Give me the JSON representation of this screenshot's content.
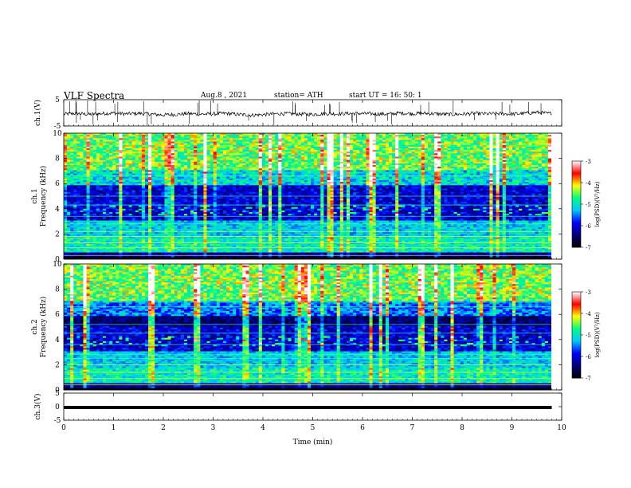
{
  "header": {
    "title": "VLF  Spectra",
    "date": "Aug.8  , 2021",
    "station": "station= ATH",
    "start": "start  UT  =    16: 50: 1"
  },
  "chart_data": [
    {
      "type": "line",
      "panel": "ch1-waveform",
      "ylabel": "ch.1(V)",
      "xlim": [
        0,
        10
      ],
      "ylim": [
        -5,
        5
      ],
      "yticks": [
        "5",
        "-5"
      ],
      "x": [
        0,
        0.25,
        0.5,
        0.75,
        1,
        1.25,
        1.5,
        1.75,
        2,
        2.25,
        2.5,
        2.75,
        3,
        3.25,
        3.5,
        3.75,
        4,
        4.25,
        4.5,
        4.75,
        5,
        5.25,
        5.5,
        5.75,
        6,
        6.25,
        6.5,
        6.75,
        7,
        7.25,
        7.5,
        7.75,
        8,
        8.25,
        8.5,
        8.75,
        9,
        9.25,
        9.5,
        9.75,
        9.8
      ],
      "y": [
        -0.5,
        -0.2,
        -0.6,
        -0.3,
        -0.1,
        -0.4,
        -0.2,
        -0.5,
        -0.8,
        -0.6,
        -0.3,
        -0.5,
        -0.4,
        -0.2,
        -0.6,
        -0.9,
        -0.7,
        -0.4,
        -0.3,
        -0.5,
        -0.6,
        -0.3,
        -0.4,
        -0.2,
        -0.3,
        -0.4,
        -0.5,
        -0.1,
        -0.3,
        -0.2,
        -0.4,
        -0.6,
        -0.5,
        -0.2,
        -0.4,
        -0.3,
        -0.5,
        -0.2,
        0.2,
        -0.3,
        0.0
      ]
    },
    {
      "type": "heatmap",
      "panel": "ch1-spectrogram",
      "ylabel": "ch.1\nFrequency (kHz)",
      "xlim": [
        0,
        9.8
      ],
      "ylim": [
        0,
        10
      ],
      "yticks": [
        "0",
        "2",
        "4",
        "6",
        "8",
        "10"
      ],
      "colorbar": {
        "label": "log(PSD)(V²/Hz)",
        "range": [
          -7,
          -3
        ],
        "ticks": [
          "-3",
          "-4",
          "-5",
          "-6",
          "-7"
        ]
      }
    },
    {
      "type": "heatmap",
      "panel": "ch2-spectrogram",
      "ylabel": "ch.2\nFrequency (kHz)",
      "xlim": [
        0,
        9.8
      ],
      "ylim": [
        0,
        10
      ],
      "yticks": [
        "0",
        "2",
        "4",
        "6",
        "8",
        "10"
      ],
      "colorbar": {
        "label": "log(PSD)(V²/Hz)",
        "range": [
          -7,
          -3
        ],
        "ticks": [
          "-3",
          "-4",
          "-5",
          "-6",
          "-7"
        ]
      }
    },
    {
      "type": "line",
      "panel": "ch3-waveform",
      "ylabel": "ch.3(V)",
      "xlim": [
        0,
        10
      ],
      "ylim": [
        -5,
        5
      ],
      "yticks": [
        "5",
        "0",
        "-5"
      ],
      "x": [
        0,
        9.8
      ],
      "y": [
        -0.3,
        -0.3
      ]
    }
  ],
  "xaxis": {
    "label": "Time  (min)",
    "ticks": [
      "0",
      "1",
      "2",
      "3",
      "4",
      "5",
      "6",
      "7",
      "8",
      "9",
      "10"
    ]
  },
  "colors": {
    "cmap": [
      "#000000",
      "#00007a",
      "#0000ff",
      "#00c8ff",
      "#00ff7f",
      "#ffff00",
      "#ff0000",
      "#ffffff"
    ]
  }
}
